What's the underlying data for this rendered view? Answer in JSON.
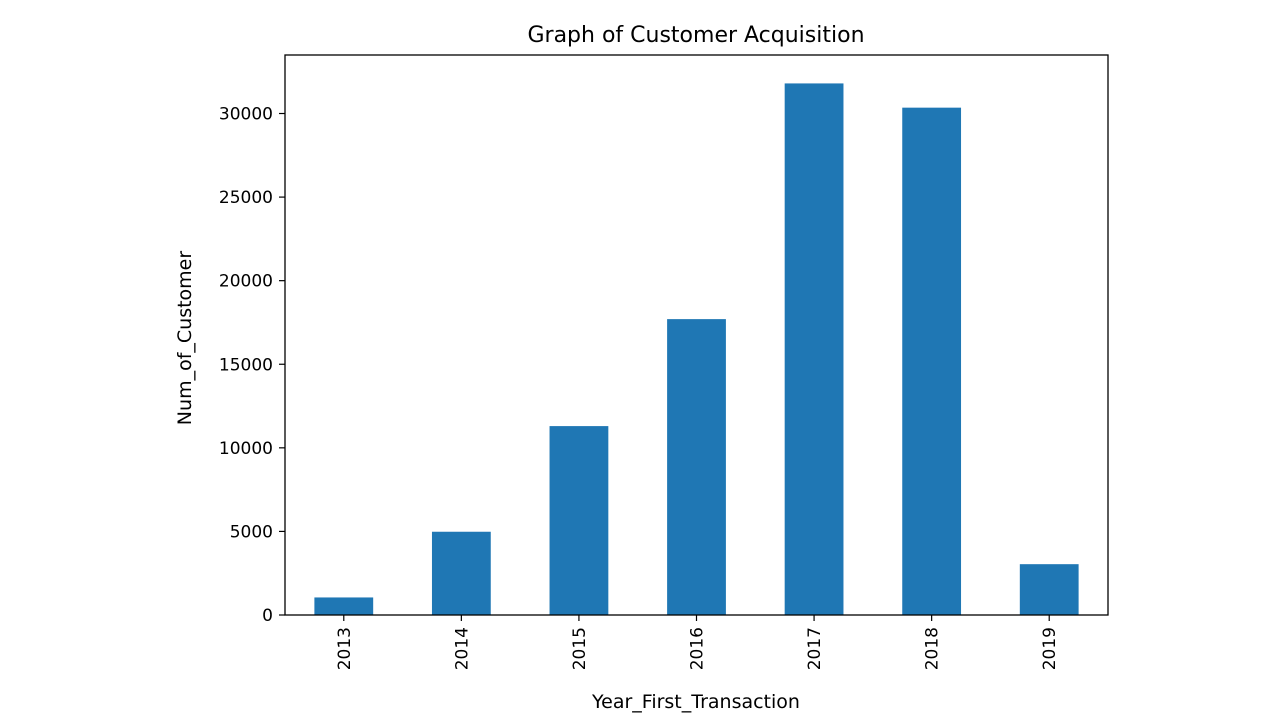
{
  "chart_data": {
    "type": "bar",
    "title": "Graph of Customer Acquisition",
    "xlabel": "Year_First_Transaction",
    "ylabel": "Num_of_Customer",
    "categories": [
      "2013",
      "2014",
      "2015",
      "2016",
      "2017",
      "2018",
      "2019"
    ],
    "values": [
      1050,
      4980,
      11300,
      17700,
      31800,
      30350,
      3040
    ],
    "yticks": [
      0,
      5000,
      10000,
      15000,
      20000,
      25000,
      30000
    ],
    "ylim": [
      0,
      33500
    ],
    "grid": false,
    "legend": "none",
    "bar_color": "#1f77b4"
  }
}
